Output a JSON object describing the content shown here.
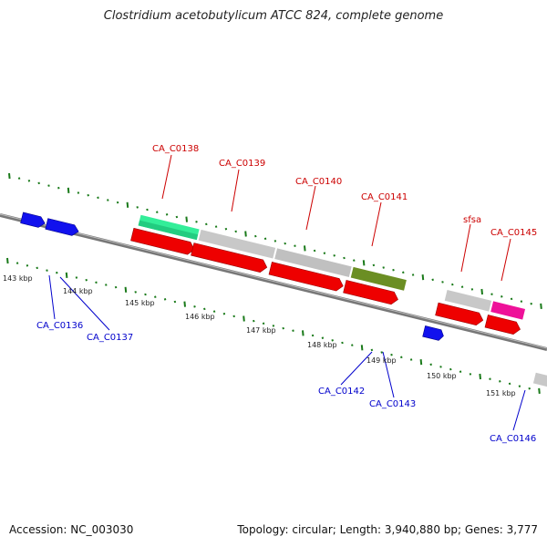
{
  "title": "Clostridium acetobutylicum ATCC 824, complete genome",
  "footer": {
    "accession": "Accession: NC_003030",
    "topology": "Topology: circular; Length: 3,940,880 bp; Genes: 3,777"
  },
  "colors": {
    "backbone": "#8a8a8a",
    "ticks": "#1a7a1a",
    "gene_label_top": "#cc0000",
    "gene_label_bottom": "#0000cc",
    "red": "#ee0000",
    "grey": "#c0c0c0",
    "green_mint": "#33ee99",
    "olive": "#6b8e23",
    "pink": "#ee1199",
    "blue": "#1111ee"
  },
  "scale_labels": [
    "143 kbp",
    "144 kbp",
    "145 kbp",
    "146 kbp",
    "147 kbp",
    "148 kbp",
    "149 kbp",
    "150 kbp",
    "151 kbp"
  ],
  "gene_labels_top": [
    "CA_C0138",
    "CA_C0139",
    "CA_C0140",
    "CA_C0141",
    "sfsa",
    "CA_C0145"
  ],
  "gene_labels_bottom": [
    "CA_C0136",
    "CA_C0137",
    "CA_C0142",
    "CA_C0143",
    "CA_C0146"
  ]
}
